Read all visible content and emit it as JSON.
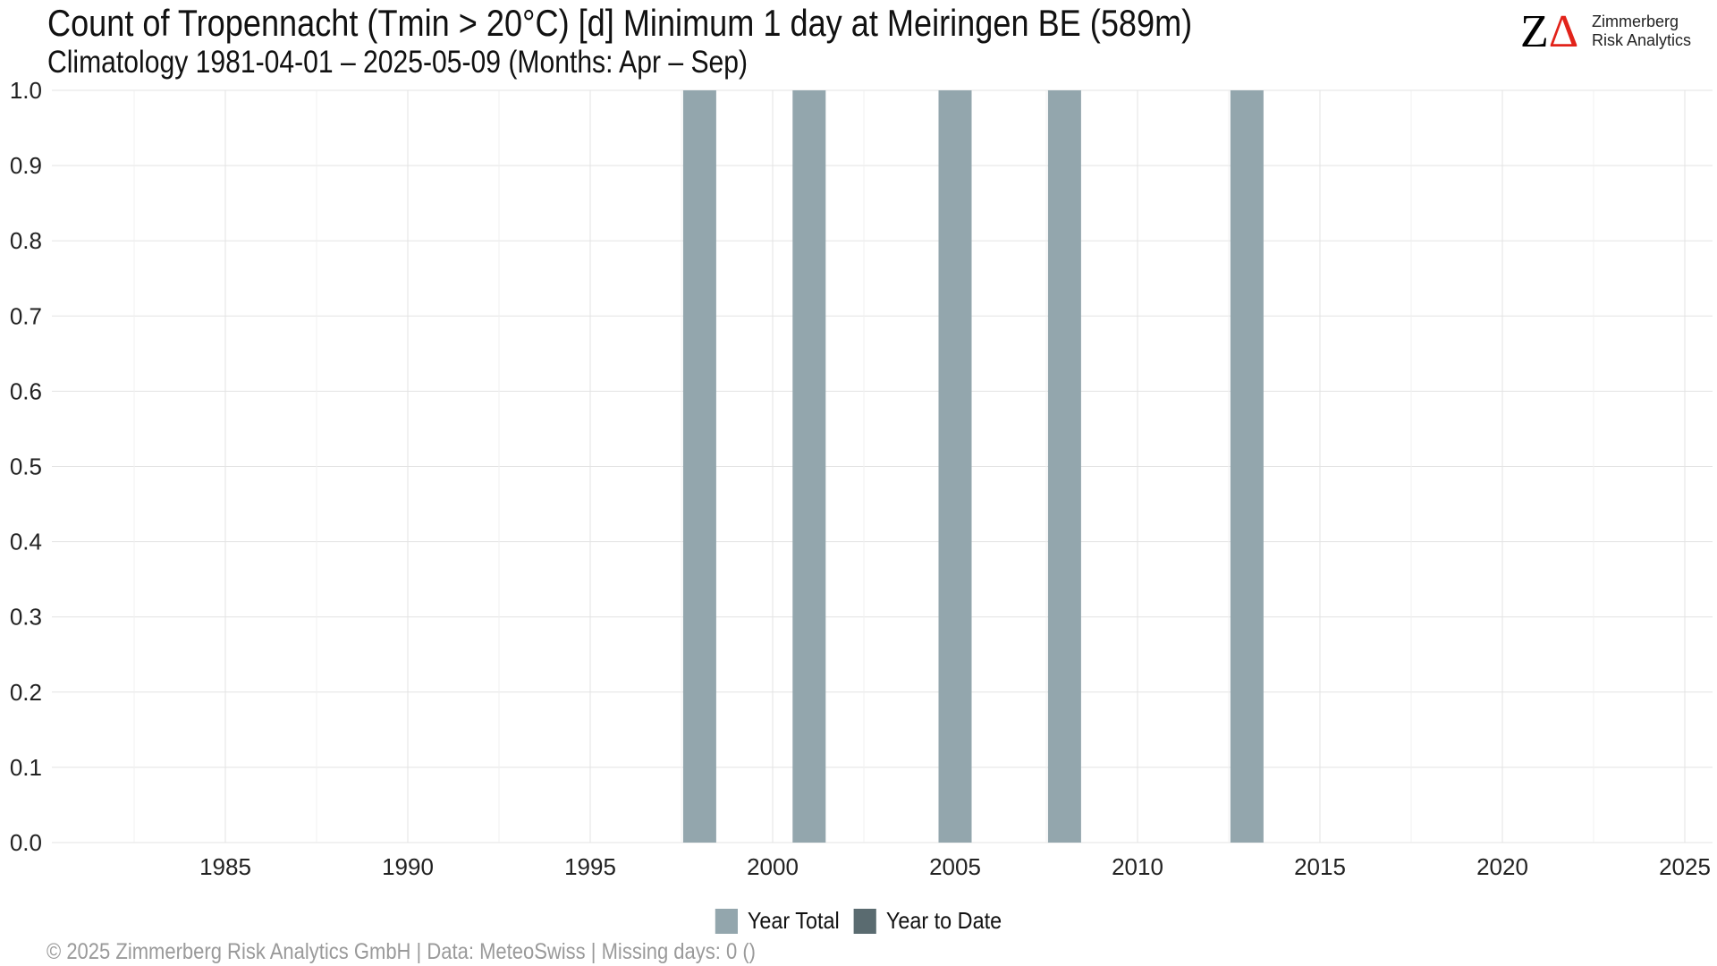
{
  "header": {
    "title": "Count of Tropennacht (Tmin > 20°C) [d] Minimum 1 day at Meiringen  BE (589m)",
    "subtitle": "Climatology 1981-04-01 – 2025-05-09 (Months: Apr – Sep)"
  },
  "logo": {
    "mark_z": "Z",
    "mark_delta": "Δ",
    "line1": "Zimmerberg",
    "line2": "Risk Analytics"
  },
  "footer": {
    "text": "©  2025 Zimmerberg Risk Analytics GmbH | Data: MeteoSwiss | Missing days: 0 ()"
  },
  "colors": {
    "year_total": "#93a6ad",
    "year_to_date": "#5a6b70",
    "grid": "#e3e3e3",
    "logo_delta": "#e2231a"
  },
  "chart_data": {
    "type": "bar",
    "title": "Count of Tropennacht (Tmin > 20°C) [d] Minimum 1 day at Meiringen  BE (589m)",
    "subtitle": "Climatology 1981-04-01 – 2025-05-09 (Months: Apr – Sep)",
    "x_range": [
      1981,
      2025
    ],
    "ylim": [
      0,
      1
    ],
    "x_ticks": [
      1985,
      1990,
      1995,
      2000,
      2005,
      2010,
      2015,
      2020,
      2025
    ],
    "y_ticks": [
      "0.0",
      "0.1",
      "0.2",
      "0.3",
      "0.4",
      "0.5",
      "0.6",
      "0.7",
      "0.8",
      "0.9",
      "1.0"
    ],
    "grid": true,
    "legend_position": "bottom",
    "series": [
      {
        "name": "Year Total",
        "color": "#93a6ad",
        "points": [
          {
            "x": 1998,
            "y": 1
          },
          {
            "x": 2001,
            "y": 1
          },
          {
            "x": 2005,
            "y": 1
          },
          {
            "x": 2008,
            "y": 1
          },
          {
            "x": 2013,
            "y": 1
          }
        ]
      },
      {
        "name": "Year to Date",
        "color": "#5a6b70",
        "points": []
      }
    ]
  }
}
